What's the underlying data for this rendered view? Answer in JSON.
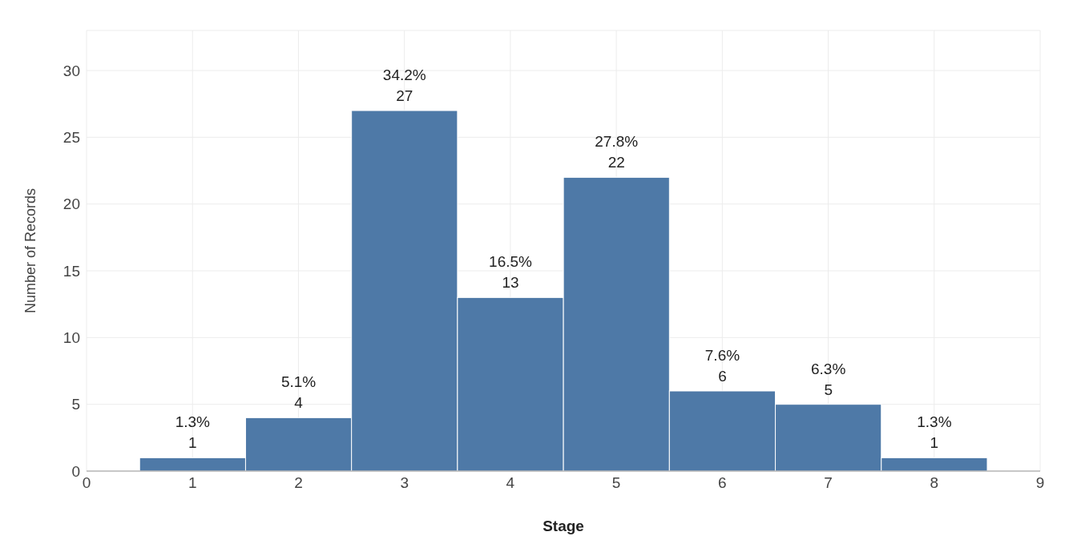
{
  "chart_data": {
    "type": "histogram",
    "xlabel": "Stage",
    "ylabel": "Number of Records",
    "bins": [
      0.5,
      1.5,
      2.5,
      3.5,
      4.5,
      5.5,
      6.5,
      7.5,
      8.5
    ],
    "values": [
      1,
      4,
      27,
      13,
      22,
      6,
      5,
      1
    ],
    "value_labels": [
      "1.3%\n1",
      "5.1%\n4",
      "34.2%\n27",
      "16.5%\n13",
      "27.8%\n22",
      "7.6%\n6",
      "6.3%\n5",
      "1.3%\n1"
    ],
    "color": "#4e79a7",
    "xlim": [
      0,
      9
    ],
    "xticks": [
      0,
      1,
      2,
      3,
      4,
      5,
      6,
      7,
      8,
      9
    ],
    "ylim": [
      0,
      33
    ],
    "yticks": [
      0,
      5,
      10,
      15,
      20,
      25,
      30
    ],
    "grid": true
  }
}
